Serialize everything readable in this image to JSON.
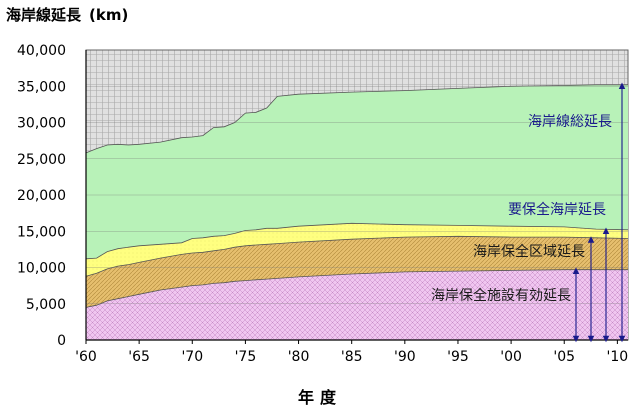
{
  "chart_data": {
    "type": "area",
    "title": "海岸線延長",
    "unit": "(km)",
    "xlabel": "年度",
    "ylabel": "",
    "ylim": [
      0,
      40000
    ],
    "xlim": [
      1960,
      2011
    ],
    "y_ticks": [
      "0",
      "5,000",
      "10,000",
      "15,000",
      "20,000",
      "25,000",
      "30,000",
      "35,000",
      "40,000"
    ],
    "x_ticks": [
      {
        "year": 1960,
        "label": "'60"
      },
      {
        "year": 1965,
        "label": "'65"
      },
      {
        "year": 1970,
        "label": "'70"
      },
      {
        "year": 1975,
        "label": "'75"
      },
      {
        "year": 1980,
        "label": "'80"
      },
      {
        "year": 1985,
        "label": "'85"
      },
      {
        "year": 1990,
        "label": "'90"
      },
      {
        "year": 1995,
        "label": "'95"
      },
      {
        "year": 2000,
        "label": "'00"
      },
      {
        "year": 2005,
        "label": "'05"
      },
      {
        "year": 2010,
        "label": "'10"
      }
    ],
    "grid": true,
    "x": [
      1960,
      1961,
      1962,
      1963,
      1964,
      1965,
      1967,
      1969,
      1970,
      1971,
      1972,
      1973,
      1974,
      1975,
      1976,
      1977,
      1978,
      1980,
      1985,
      1990,
      1995,
      2000,
      2005,
      2008,
      2011
    ],
    "series": [
      {
        "name": "海岸線総延長",
        "color": "#b8f2b8",
        "label_color": "#1a1a8c",
        "values": [
          25800,
          26400,
          26900,
          27000,
          26900,
          27000,
          27300,
          27900,
          28000,
          28200,
          29300,
          29400,
          30000,
          31300,
          31400,
          32000,
          33600,
          33900,
          34200,
          34400,
          34700,
          35000,
          35100,
          35200,
          35200
        ]
      },
      {
        "name": "要保全海岸延長",
        "color": "#ffff80",
        "label_color": "#1a1a8c",
        "values": [
          11200,
          11300,
          12200,
          12600,
          12800,
          13000,
          13200,
          13400,
          14000,
          14100,
          14300,
          14400,
          14700,
          15100,
          15200,
          15400,
          15400,
          15700,
          16100,
          15900,
          15800,
          15700,
          15600,
          15300,
          15200
        ]
      },
      {
        "name": "海岸保全区域延長",
        "color": "#e6bf6e",
        "label_color": "#1a1a1a",
        "values": [
          8800,
          9200,
          9800,
          10200,
          10400,
          10700,
          11300,
          11800,
          12000,
          12100,
          12300,
          12500,
          12800,
          13000,
          13100,
          13200,
          13300,
          13500,
          13900,
          14200,
          14300,
          14200,
          14200,
          14100,
          14000
        ]
      },
      {
        "name": "海岸保全施設有効延長",
        "color": "#eab8ea",
        "label_color": "#1a1a1a",
        "values": [
          4500,
          4800,
          5400,
          5700,
          6000,
          6300,
          6900,
          7300,
          7500,
          7600,
          7800,
          7900,
          8100,
          8200,
          8300,
          8400,
          8500,
          8700,
          9100,
          9400,
          9500,
          9600,
          9700,
          9700,
          9700
        ]
      }
    ]
  }
}
